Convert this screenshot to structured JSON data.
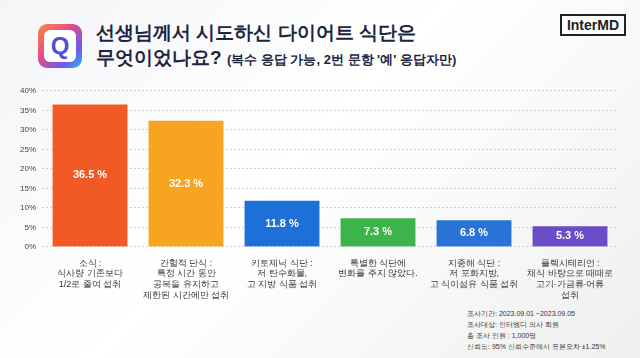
{
  "chart_data": {
    "type": "bar",
    "title": [
      "선생님께서 시도하신 다이어트 식단은",
      "무엇이었나요?"
    ],
    "subtitle": "(복수 응답 가능, 2번 문항 '예' 응답자만)",
    "categories": [
      [
        "소식 :",
        "식사량 기존보다",
        "1/2로 줄여 섭취"
      ],
      [
        "간헐적 단식 :",
        "특정 시간 동안",
        "공복을 유지하고",
        "제한된 시간에만 섭취"
      ],
      [
        "키토제닉 식단 :",
        "저 탄수화물,",
        "고 지방 식품 섭취"
      ],
      [
        "특별한 식단에",
        "변화를 주지 않았다."
      ],
      [
        "지중해 식단 :",
        "저 포화지방,",
        "고 식이섬유 식품 섭취"
      ],
      [
        "플렉시테리언 :",
        "채식 바탕으로 때때로",
        "고기·가금류·어류",
        "섭취"
      ]
    ],
    "values": [
      36.5,
      32.3,
      11.8,
      7.3,
      6.8,
      5.3
    ],
    "value_labels": [
      "36.5 %",
      "32.3 %",
      "11.8 %",
      "7.3 %",
      "6.8 %",
      "5.3 %"
    ],
    "colors": [
      "#f15a24",
      "#f7a520",
      "#1f6fd8",
      "#3db44b",
      "#2a73d6",
      "#6a4cc6"
    ],
    "ylim": [
      0,
      40
    ],
    "yticks": [
      {
        "value": 0,
        "label": "0%"
      },
      {
        "value": 5,
        "label": "5%"
      },
      {
        "value": 10,
        "label": "10%"
      },
      {
        "value": 15,
        "label": "15%"
      },
      {
        "value": 20,
        "label": "20%"
      },
      {
        "value": 25,
        "label": "25%"
      },
      {
        "value": 30,
        "label": "30%"
      },
      {
        "value": 35,
        "label": "35%"
      },
      {
        "value": 40,
        "label": "40%"
      }
    ],
    "grid": true,
    "data_labels": true,
    "annotations": {
      "badge": "Q",
      "logo": "InterMD",
      "notes": [
        "조사기간: 2023.09.01 ~2023.09.05",
        "조사대상: 인터엠디 의사 회원",
        "총 조사 인원 : 1,000명",
        "신뢰도: 95% 신뢰수준에서 표본오차 ±1.25%"
      ]
    }
  }
}
